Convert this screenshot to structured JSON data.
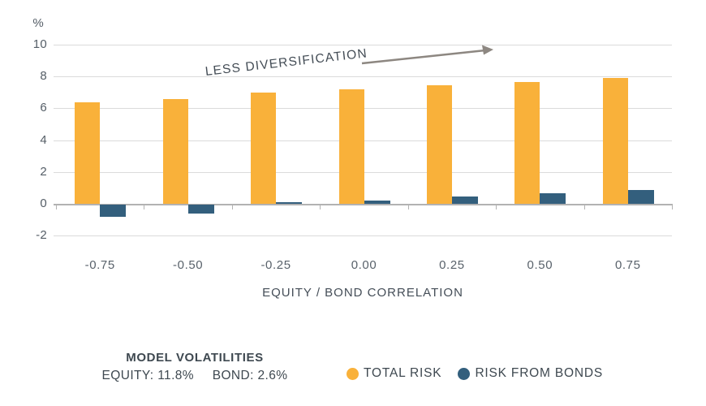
{
  "colors": {
    "total_risk": "#f9b13a",
    "risk_from_bonds": "#335f7d",
    "gridline": "#dbdbdb",
    "axis_line": "#b2b2b2",
    "text_dark": "#3e4850",
    "text_medium": "#545d66",
    "arrow": "#8d8781"
  },
  "chart_data": {
    "type": "bar",
    "title": "",
    "y_unit": "%",
    "xlabel": "EQUITY / BOND CORRELATION",
    "categories": [
      "-0.75",
      "-0.50",
      "-0.25",
      "0.00",
      "0.25",
      "0.50",
      "0.75"
    ],
    "series": [
      {
        "name": "TOTAL RISK",
        "color": "#f9b13a",
        "values": [
          6.4,
          6.6,
          7.0,
          7.2,
          7.45,
          7.65,
          7.9
        ]
      },
      {
        "name": "RISK FROM BONDS",
        "color": "#335f7d",
        "values": [
          -0.75,
          -0.55,
          0.1,
          0.2,
          0.45,
          0.65,
          0.85
        ]
      }
    ],
    "y_ticks": [
      10,
      8,
      6,
      4,
      2,
      0,
      -2
    ],
    "ylim": [
      -2.7,
      11
    ],
    "grid": true,
    "legend_position": "bottom",
    "annotation": {
      "text": "LESS DIVERSIFICATION",
      "arrow": true
    }
  },
  "footer": {
    "volatilities_title": "MODEL VOLATILITIES",
    "equity_label": "EQUITY: 11.8%",
    "bond_label": "BOND: 2.6%",
    "legend": [
      {
        "label": "TOTAL RISK",
        "color": "#f9b13a"
      },
      {
        "label": "RISK FROM BONDS",
        "color": "#335f7d"
      }
    ]
  }
}
